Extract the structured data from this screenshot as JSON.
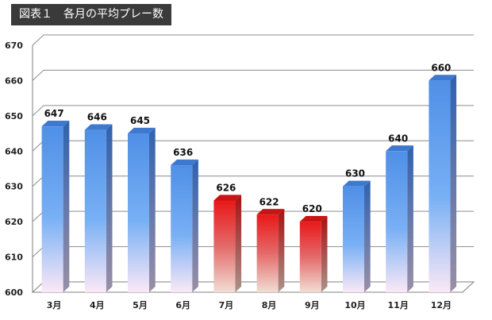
{
  "title": "図表１　各月の平均プレー数",
  "chart_data": {
    "type": "bar",
    "title": "図表１　各月の平均プレー数",
    "categories": [
      "3月",
      "4月",
      "5月",
      "6月",
      "7月",
      "8月",
      "9月",
      "10月",
      "11月",
      "12月"
    ],
    "values": [
      647,
      646,
      645,
      636,
      626,
      622,
      620,
      630,
      640,
      660
    ],
    "ylim": [
      600,
      670
    ],
    "yticks": [
      600,
      610,
      620,
      630,
      640,
      650,
      660,
      670
    ],
    "grid": true,
    "colors": {
      "blue_top": "#4f8fe6",
      "blue_bottom": "#fbe8f6",
      "red_top": "#e81818",
      "red_bottom": "#f1ddd3",
      "highlight_months": [
        "7月",
        "8月",
        "9月"
      ]
    }
  }
}
